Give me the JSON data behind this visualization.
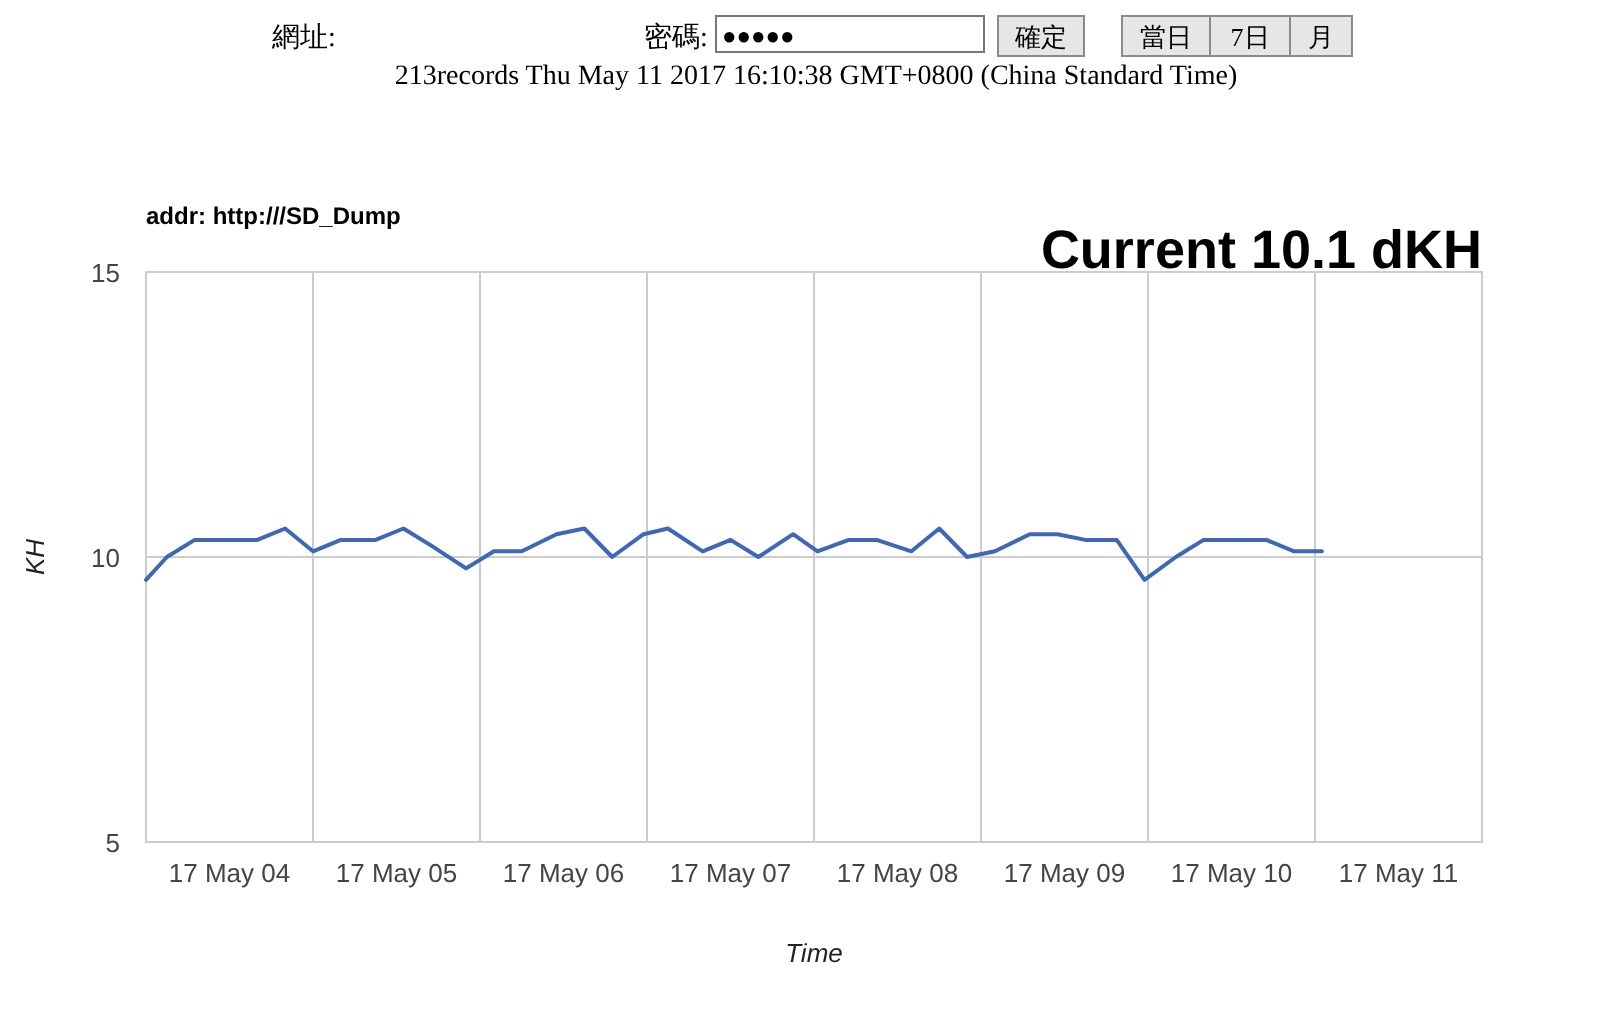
{
  "chart_data": {
    "type": "line",
    "title": "Current 10.1 dKH",
    "subtitle": "213records Thu May 11 2017 16:10:38 GMT+0800 (China Standard Time)",
    "xlabel": "Time",
    "ylabel": "KH",
    "annotations": [
      "網址:",
      "密碼:",
      "●●●●●",
      "確定",
      "當日",
      "7日",
      "月",
      "addr: http:///SD_Dump"
    ],
    "x": [
      "2017-05-04T00:00",
      "2017-05-04T03:00",
      "2017-05-04T07:00",
      "2017-05-04T16:00",
      "2017-05-04T20:00",
      "2017-05-05T00:00",
      "2017-05-05T04:00",
      "2017-05-05T09:00",
      "2017-05-05T13:00",
      "2017-05-05T17:00",
      "2017-05-05T22:00",
      "2017-05-06T02:00",
      "2017-05-06T06:00",
      "2017-05-06T11:00",
      "2017-05-06T15:00",
      "2017-05-06T19:00",
      "2017-05-06T23:30",
      "2017-05-07T03:00",
      "2017-05-07T08:00",
      "2017-05-07T12:00",
      "2017-05-07T16:00",
      "2017-05-07T21:00",
      "2017-05-08T00:30",
      "2017-05-08T05:00",
      "2017-05-08T09:00",
      "2017-05-08T14:00",
      "2017-05-08T18:00",
      "2017-05-08T22:00",
      "2017-05-09T02:00",
      "2017-05-09T07:00",
      "2017-05-09T11:00",
      "2017-05-09T15:00",
      "2017-05-09T19:30",
      "2017-05-09T23:30",
      "2017-05-10T04:00",
      "2017-05-10T08:00",
      "2017-05-10T17:00",
      "2017-05-10T21:00",
      "2017-05-11T01:00"
    ],
    "series": [
      {
        "color": "#3f67b8",
        "values": [
          9.6,
          10.0,
          10.3,
          10.3,
          10.5,
          10.1,
          10.3,
          10.3,
          10.5,
          10.2,
          9.8,
          10.1,
          10.1,
          10.4,
          10.5,
          10.0,
          10.4,
          10.5,
          10.1,
          10.3,
          10.0,
          10.4,
          10.1,
          10.3,
          10.3,
          10.1,
          10.5,
          10.0,
          10.1,
          10.4,
          10.4,
          10.3,
          10.3,
          9.6,
          10.0,
          10.3,
          10.3,
          10.1,
          10.1
        ]
      }
    ],
    "xlim": [
      "2017-05-04",
      "2017-05-12"
    ],
    "xticks": [
      {
        "value": "2017-05-04T12:00",
        "label": "17 May 04"
      },
      {
        "value": "2017-05-05",
        "label": null
      },
      {
        "value": "2017-05-05T12:00",
        "label": "17 May 05"
      },
      {
        "value": "2017-05-06",
        "label": null
      },
      {
        "value": "2017-05-06T12:00",
        "label": "17 May 06"
      },
      {
        "value": "2017-05-07",
        "label": null
      },
      {
        "value": "2017-05-07T12:00",
        "label": "17 May 07"
      },
      {
        "value": "2017-05-08",
        "label": null
      },
      {
        "value": "2017-05-08T12:00",
        "label": "17 May 08"
      },
      {
        "value": "2017-05-09",
        "label": null
      },
      {
        "value": "2017-05-09T12:00",
        "label": "17 May 09"
      },
      {
        "value": "2017-05-10",
        "label": null
      },
      {
        "value": "2017-05-10T12:00",
        "label": "17 May 10"
      },
      {
        "value": "2017-05-11",
        "label": null
      },
      {
        "value": "2017-05-11T12:00",
        "label": "17 May 11"
      }
    ],
    "ylim": [
      5,
      15
    ],
    "yticks": [
      5,
      10,
      15
    ],
    "grid": true,
    "marker": "none",
    "line_style": "solid"
  }
}
